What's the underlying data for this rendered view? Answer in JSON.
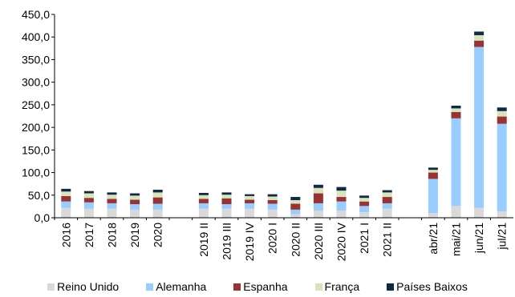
{
  "chart_data": {
    "type": "bar",
    "stacked": true,
    "ylim": [
      0,
      450
    ],
    "yticks": [
      "0,0",
      "50,0",
      "100,0",
      "150,0",
      "200,0",
      "250,0",
      "300,0",
      "350,0",
      "400,0",
      "450,0"
    ],
    "categories": [
      "2016",
      "2017",
      "2018",
      "2019",
      "2020",
      "",
      "2019 II",
      "2019 III",
      "2019 IV",
      "2020 I",
      "2020 II",
      "2020 III",
      "2020 IV",
      "2021 I",
      "2021 II",
      "",
      "abr/21",
      "mai/21",
      "jun/21",
      "jul/21"
    ],
    "series": [
      {
        "name": "Reino Unido",
        "color": "#d9d9d9",
        "values": [
          22,
          20,
          20,
          18,
          18,
          null,
          20,
          20,
          20,
          18,
          8,
          16,
          16,
          12,
          20,
          null,
          10,
          26,
          22,
          14
        ]
      },
      {
        "name": "Alemanha",
        "color": "#99ccff",
        "values": [
          14,
          14,
          12,
          12,
          13,
          null,
          12,
          10,
          12,
          13,
          10,
          16,
          20,
          14,
          12,
          null,
          76,
          194,
          356,
          194
        ]
      },
      {
        "name": "Espanha",
        "color": "#993333",
        "values": [
          12,
          10,
          10,
          10,
          14,
          null,
          10,
          13,
          8,
          8,
          13,
          22,
          10,
          10,
          14,
          null,
          14,
          14,
          14,
          16
        ]
      },
      {
        "name": "França",
        "color": "#d8e4bc",
        "values": [
          10,
          10,
          9,
          9,
          11,
          null,
          8,
          8,
          8,
          8,
          8,
          12,
          14,
          8,
          10,
          null,
          6,
          8,
          12,
          12
        ]
      },
      {
        "name": "Países Baixos",
        "color": "#0f2a45",
        "values": [
          6,
          5,
          5,
          5,
          6,
          null,
          5,
          5,
          4,
          5,
          7,
          7,
          8,
          5,
          5,
          null,
          5,
          6,
          8,
          8
        ]
      }
    ]
  }
}
